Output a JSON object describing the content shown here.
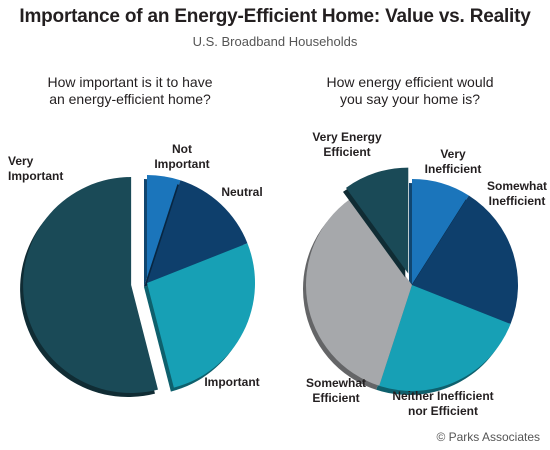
{
  "title": "Importance of an Energy-Efficient Home: Value vs. Reality",
  "subtitle": "U.S. Broadband Households",
  "credit": "© Parks Associates",
  "chart_data": [
    {
      "type": "pie",
      "question_lines": [
        "How important is it to have",
        "an energy-efficient home?"
      ],
      "slices": [
        {
          "label_lines": [
            "Not",
            "Important"
          ],
          "value": 5,
          "color": "#1b75bb",
          "explode": false
        },
        {
          "label_lines": [
            "Neutral"
          ],
          "value": 14,
          "color": "#0e3f6c",
          "explode": false
        },
        {
          "label_lines": [
            "Important"
          ],
          "value": 27,
          "color": "#17a0b5",
          "explode": false
        },
        {
          "label_lines": [
            "Very",
            "Important"
          ],
          "value": 54,
          "color": "#1a4a57",
          "explode": true
        }
      ]
    },
    {
      "type": "pie",
      "question_lines": [
        "How energy efficient would",
        "you say your home is?"
      ],
      "slices": [
        {
          "label_lines": [
            "Very",
            "Inefficient"
          ],
          "value": 9,
          "color": "#1b75bb",
          "explode": false
        },
        {
          "label_lines": [
            "Somewhat",
            "Inefficient"
          ],
          "value": 22,
          "color": "#0e3f6c",
          "explode": false
        },
        {
          "label_lines": [
            "Neither Inefficient",
            "nor Efficient"
          ],
          "value": 24,
          "color": "#17a0b5",
          "explode": false
        },
        {
          "label_lines": [
            "Somewhat",
            "Efficient"
          ],
          "value": 35,
          "color": "#a6a8ab",
          "explode": false
        },
        {
          "label_lines": [
            "Very Energy",
            "Efficient"
          ],
          "value": 10,
          "color": "#1a4a57",
          "explode": true
        }
      ]
    }
  ]
}
